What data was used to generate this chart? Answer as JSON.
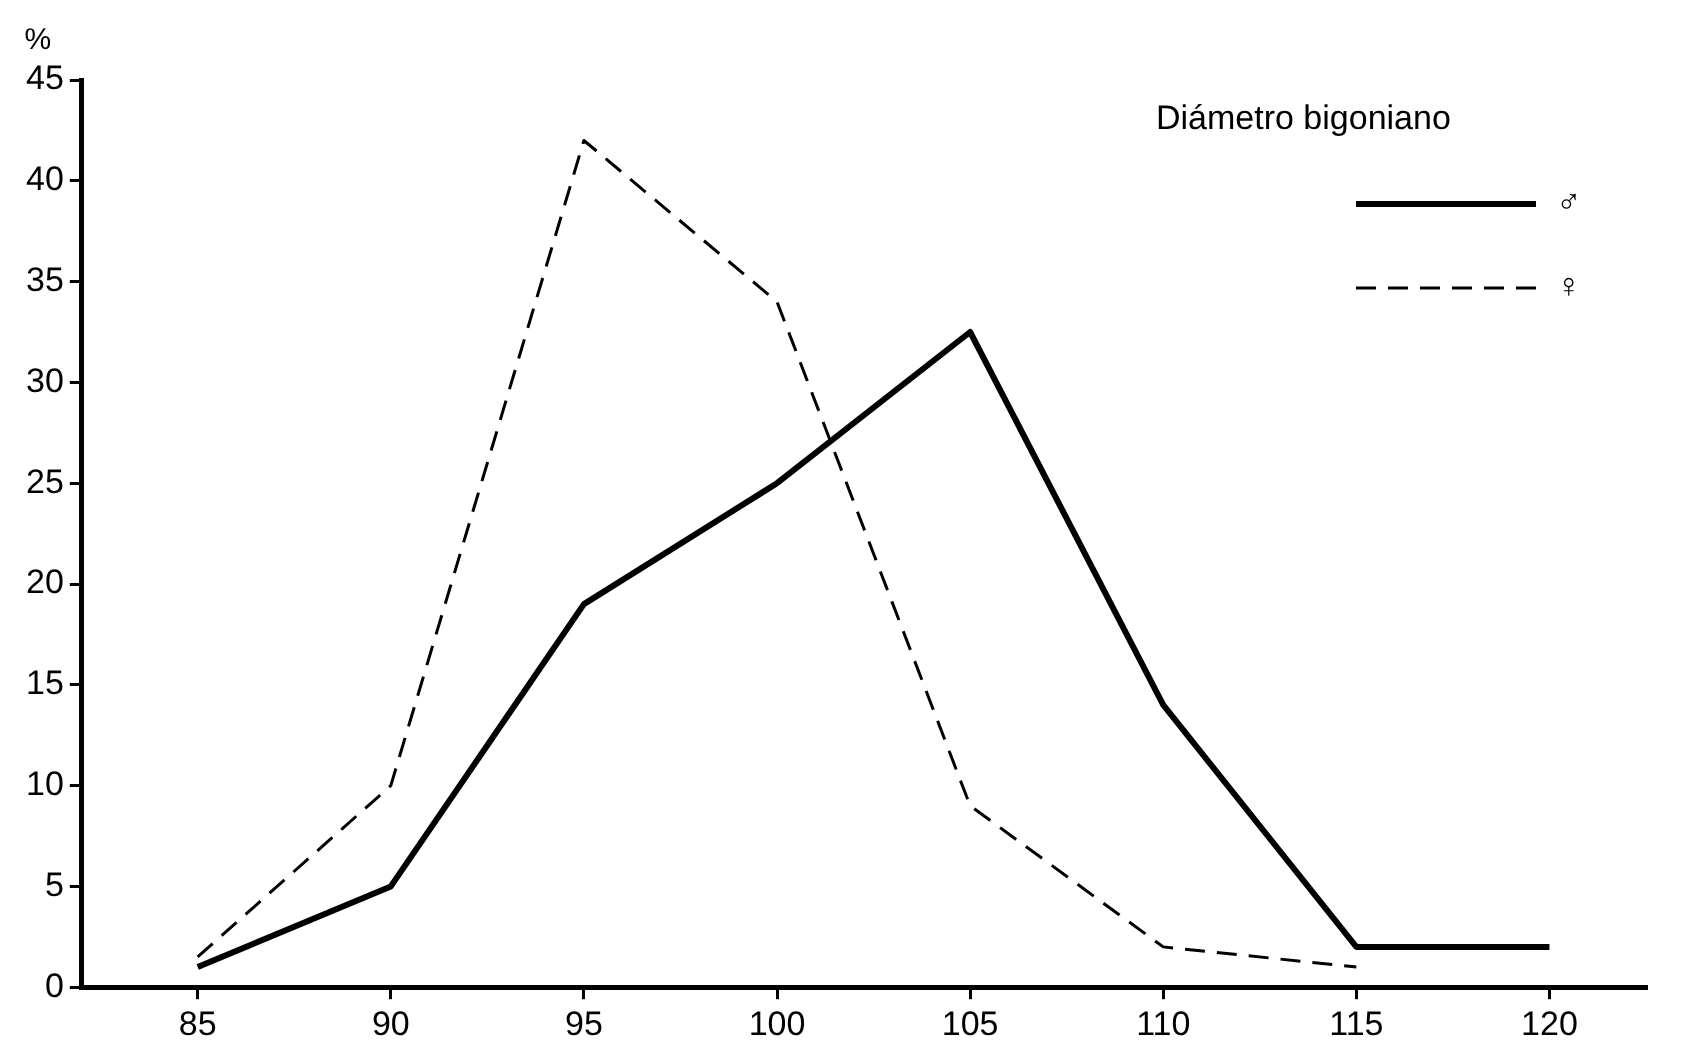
{
  "chart_data": {
    "type": "line",
    "ylabel": "%",
    "legend_title": "Diámetro bigoniano",
    "x": [
      85,
      90,
      95,
      100,
      105,
      110,
      115,
      120
    ],
    "series": [
      {
        "name": "♂",
        "color": "#000000",
        "line_style": "solid",
        "values": [
          1,
          5,
          19,
          25,
          32.5,
          14,
          2,
          2
        ]
      },
      {
        "name": "♀",
        "color": "#000000",
        "line_style": "dashed",
        "values": [
          1.5,
          10,
          42,
          34,
          9,
          2,
          1,
          null
        ]
      }
    ],
    "xlim": [
      82,
      122.5
    ],
    "ylim": [
      0,
      45
    ],
    "xticks": [
      85,
      90,
      95,
      100,
      105,
      110,
      115,
      120
    ],
    "yticks": [
      0,
      5,
      10,
      15,
      20,
      25,
      30,
      35,
      40,
      45
    ],
    "grid": false,
    "legend": "top right",
    "marker": "none"
  }
}
